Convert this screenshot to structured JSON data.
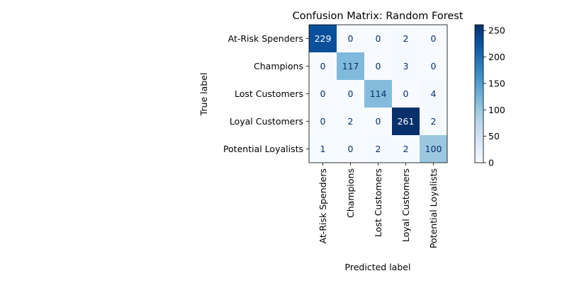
{
  "chart_data": {
    "type": "heatmap",
    "title": "Confusion Matrix: Random Forest",
    "xlabel": "Predicted label",
    "ylabel": "True label",
    "row_labels": [
      "At-Risk Spenders",
      "Champions",
      "Lost Customers",
      "Loyal Customers",
      "Potential Loyalists"
    ],
    "col_labels": [
      "At-Risk Spenders",
      "Champions",
      "Lost Customers",
      "Loyal Customers",
      "Potential Loyalists"
    ],
    "matrix": [
      [
        229,
        0,
        0,
        2,
        0
      ],
      [
        0,
        117,
        0,
        3,
        0
      ],
      [
        0,
        0,
        114,
        0,
        4
      ],
      [
        0,
        2,
        0,
        261,
        2
      ],
      [
        1,
        0,
        2,
        2,
        100
      ]
    ],
    "colormap": "Blues",
    "color_range": [
      0,
      261
    ],
    "colorbar_ticks": [
      0,
      50,
      100,
      150,
      200,
      250
    ]
  }
}
